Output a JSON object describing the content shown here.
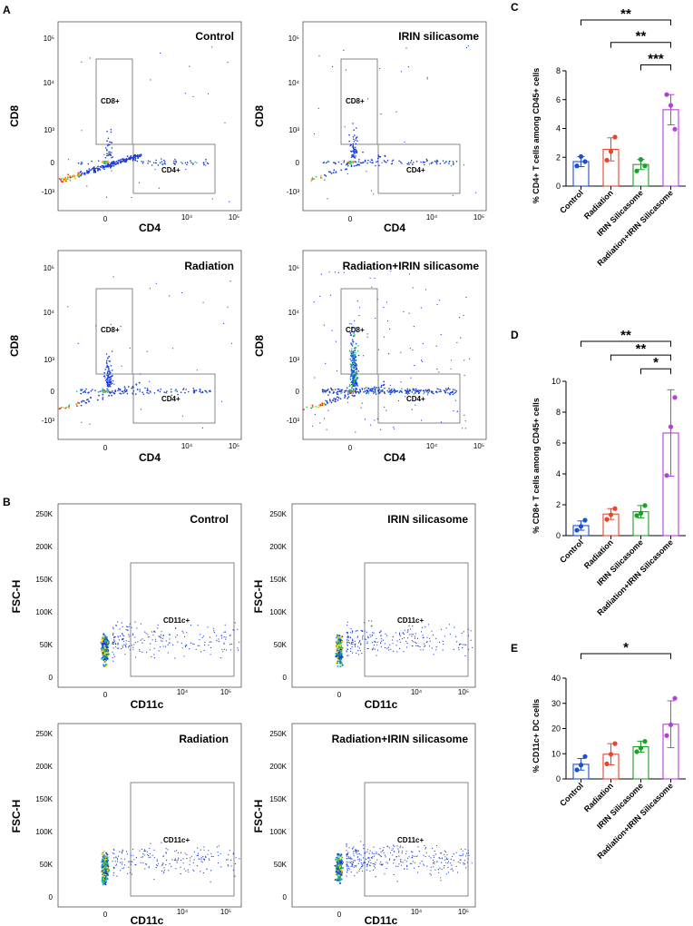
{
  "panels": {
    "A": "A",
    "B": "B",
    "C": "C",
    "D": "D",
    "E": "E"
  },
  "flow_a": {
    "x_label": "CD4",
    "y_label": "CD8",
    "x_ticks": [
      "0",
      "10⁴",
      "10⁵"
    ],
    "y_ticks": [
      "10⁵",
      "10⁴",
      "10³",
      "0",
      "-10³"
    ],
    "gates": {
      "upper": "CD8+",
      "lower": "CD4+"
    },
    "plots": [
      {
        "title": "Control"
      },
      {
        "title": "IRIN silicasome"
      },
      {
        "title": "Radiation"
      },
      {
        "title": "Radiation+IRIN silicasome"
      }
    ]
  },
  "flow_b": {
    "x_label": "CD11c",
    "y_label": "FSC-H",
    "x_ticks": [
      "0",
      "10⁴",
      "10⁵"
    ],
    "y_ticks": [
      "250K",
      "200K",
      "150K",
      "100K",
      "50K",
      "0"
    ],
    "gate": "CD11c+",
    "plots": [
      {
        "title": "Control"
      },
      {
        "title": "IRIN silicasome"
      },
      {
        "title": "Radiation"
      },
      {
        "title": "Radiation+IRIN silicasome"
      }
    ]
  },
  "colors": {
    "Control": "#1f4fd1",
    "Radiation": "#e8452c",
    "IRIN Silicasome": "#1f9e2c",
    "Radiation+IRIN Silicasome": "#b53fdd"
  },
  "chart_data": [
    {
      "id": "C",
      "type": "bar",
      "categories": [
        "Control",
        "Radiation",
        "IRIN Silicasome",
        "Radiation+IRIN Silicasome"
      ],
      "values": [
        1.7,
        2.55,
        1.5,
        5.3
      ],
      "errors": [
        0.35,
        0.8,
        0.35,
        1.05
      ],
      "points": [
        [
          1.4,
          2.05,
          1.7
        ],
        [
          1.8,
          2.4,
          3.4
        ],
        [
          1.05,
          1.85,
          1.4
        ],
        [
          6.35,
          5.6,
          3.95
        ]
      ],
      "ylabel": "% CD4+ T cells among CD45+ cells",
      "ylim": [
        0,
        8
      ],
      "yticks": [
        "0",
        "2",
        "4",
        "6",
        "8"
      ],
      "comparisons": [
        {
          "from": "Control",
          "to": "Radiation+IRIN Silicasome",
          "label": "**"
        },
        {
          "from": "Radiation",
          "to": "Radiation+IRIN Silicasome",
          "label": "**"
        },
        {
          "from": "IRIN Silicasome",
          "to": "Radiation+IRIN Silicasome",
          "label": "***"
        }
      ]
    },
    {
      "id": "D",
      "type": "bar",
      "categories": [
        "Control",
        "Radiation",
        "IRIN Silicasome",
        "Radiation+IRIN Silicasome"
      ],
      "values": [
        0.65,
        1.4,
        1.55,
        6.65
      ],
      "errors": [
        0.3,
        0.35,
        0.4,
        2.8
      ],
      "points": [
        [
          0.35,
          0.6,
          1.0
        ],
        [
          1.05,
          1.35,
          1.75
        ],
        [
          1.3,
          1.45,
          1.95
        ],
        [
          3.9,
          7.05,
          8.95
        ]
      ],
      "ylabel": "% CD8+ T cells among CD45+ cells",
      "ylim": [
        0,
        10
      ],
      "yticks": [
        "0",
        "2",
        "4",
        "6",
        "8",
        "10"
      ],
      "comparisons": [
        {
          "from": "Control",
          "to": "Radiation+IRIN Silicasome",
          "label": "**"
        },
        {
          "from": "Radiation",
          "to": "Radiation+IRIN Silicasome",
          "label": "**"
        },
        {
          "from": "IRIN Silicasome",
          "to": "Radiation+IRIN Silicasome",
          "label": "*"
        }
      ]
    },
    {
      "id": "E",
      "type": "bar",
      "categories": [
        "Control",
        "Radiation",
        "IRIN Silicasome",
        "Radiation+IRIN Silicasome"
      ],
      "values": [
        5.8,
        9.8,
        12.8,
        21.7
      ],
      "errors": [
        2.3,
        4.2,
        2.2,
        9.3
      ],
      "points": [
        [
          3.6,
          5.5,
          8.9
        ],
        [
          6.0,
          9.8,
          14.0
        ],
        [
          10.8,
          12.2,
          14.9
        ],
        [
          17.2,
          21.5,
          32.0
        ]
      ],
      "ylabel": "% CD11c+ DC cells",
      "ylim": [
        0,
        40
      ],
      "yticks": [
        "0",
        "10",
        "20",
        "30",
        "40"
      ],
      "comparisons": [
        {
          "from": "Control",
          "to": "Radiation+IRIN Silicasome",
          "label": "*"
        }
      ]
    }
  ]
}
